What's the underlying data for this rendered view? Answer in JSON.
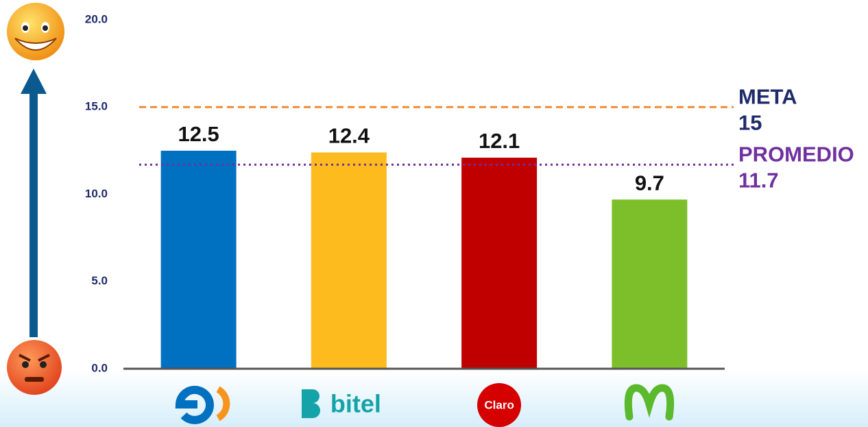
{
  "chart_data": {
    "type": "bar",
    "categories": [
      null,
      "bitel",
      "Claro",
      null
    ],
    "values": [
      12.5,
      12.4,
      12.1,
      9.7
    ],
    "colors": [
      "#0070c0",
      "#fdbb1e",
      "#c00000",
      "#7dbf2a"
    ],
    "ylim": [
      0,
      20
    ],
    "yticks": [
      {
        "value": 0,
        "label": "0.0"
      },
      {
        "value": 5,
        "label": "5.0"
      },
      {
        "value": 10,
        "label": "10.0"
      },
      {
        "value": 15,
        "label": "15.0"
      },
      {
        "value": 20,
        "label": "20.0"
      }
    ],
    "reference_lines": [
      {
        "name": "META",
        "value": 15,
        "color": "#f08a30",
        "style": "dashed",
        "name_color": "#1f2a6b"
      },
      {
        "name": "PROMEDIO",
        "value": 11.7,
        "color": "#7030a0",
        "style": "dotted",
        "name_color": "#7030a0"
      }
    ]
  }
}
